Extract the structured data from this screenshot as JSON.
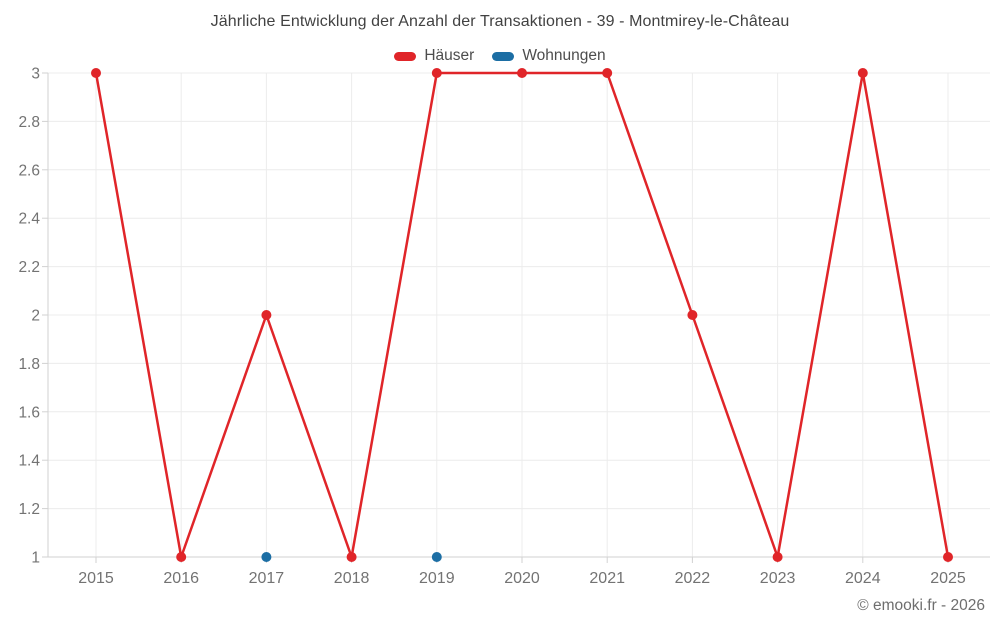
{
  "title": "Jährliche Entwicklung der Anzahl der Transaktionen - 39 - Montmirey-le-Château",
  "legend": [
    {
      "label": "Häuser",
      "color": "#e02529"
    },
    {
      "label": "Wohnungen",
      "color": "#1c6ea4"
    }
  ],
  "footer": "© emooki.fr - 2026",
  "chart_data": {
    "type": "line",
    "title": "Jährliche Entwicklung der Anzahl der Transaktionen - 39 - Montmirey-le-Château",
    "categories": [
      "2015",
      "2016",
      "2017",
      "2018",
      "2019",
      "2020",
      "2021",
      "2022",
      "2023",
      "2024",
      "2025"
    ],
    "series": [
      {
        "name": "Häuser",
        "color": "#e02529",
        "values": [
          3,
          1,
          2,
          1,
          3,
          3,
          3,
          2,
          1,
          3,
          1
        ]
      },
      {
        "name": "Wohnungen",
        "color": "#1c6ea4",
        "values": [
          null,
          null,
          1,
          null,
          1,
          null,
          null,
          null,
          null,
          null,
          null
        ]
      }
    ],
    "xlabel": "",
    "ylabel": "",
    "ylim": [
      1,
      3
    ],
    "yticks": [
      1,
      1.2,
      1.4,
      1.6,
      1.8,
      2,
      2.2,
      2.4,
      2.6,
      2.8,
      3
    ],
    "grid": true,
    "legend_position": "top"
  }
}
